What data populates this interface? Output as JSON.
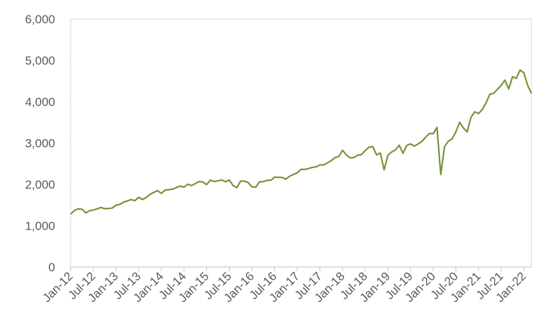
{
  "chart_data": {
    "type": "line",
    "x": [
      "2012-01",
      "2012-02",
      "2012-03",
      "2012-04",
      "2012-05",
      "2012-06",
      "2012-07",
      "2012-08",
      "2012-09",
      "2012-10",
      "2012-11",
      "2012-12",
      "2013-01",
      "2013-02",
      "2013-03",
      "2013-04",
      "2013-05",
      "2013-06",
      "2013-07",
      "2013-08",
      "2013-09",
      "2013-10",
      "2013-11",
      "2013-12",
      "2014-01",
      "2014-02",
      "2014-03",
      "2014-04",
      "2014-05",
      "2014-06",
      "2014-07",
      "2014-08",
      "2014-09",
      "2014-10",
      "2014-11",
      "2014-12",
      "2015-01",
      "2015-02",
      "2015-03",
      "2015-04",
      "2015-05",
      "2015-06",
      "2015-07",
      "2015-08",
      "2015-09",
      "2015-10",
      "2015-11",
      "2015-12",
      "2016-01",
      "2016-02",
      "2016-03",
      "2016-04",
      "2016-05",
      "2016-06",
      "2016-07",
      "2016-08",
      "2016-09",
      "2016-10",
      "2016-11",
      "2016-12",
      "2017-01",
      "2017-02",
      "2017-03",
      "2017-04",
      "2017-05",
      "2017-06",
      "2017-07",
      "2017-08",
      "2017-09",
      "2017-10",
      "2017-11",
      "2017-12",
      "2018-01",
      "2018-02",
      "2018-03",
      "2018-04",
      "2018-05",
      "2018-06",
      "2018-07",
      "2018-08",
      "2018-09",
      "2018-10",
      "2018-11",
      "2018-12",
      "2019-01",
      "2019-02",
      "2019-03",
      "2019-04",
      "2019-05",
      "2019-06",
      "2019-07",
      "2019-08",
      "2019-09",
      "2019-10",
      "2019-11",
      "2019-12",
      "2020-01",
      "2020-02",
      "2020-03",
      "2020-04",
      "2020-05",
      "2020-06",
      "2020-07",
      "2020-08",
      "2020-09",
      "2020-10",
      "2020-11",
      "2020-12",
      "2021-01",
      "2021-02",
      "2021-03",
      "2021-04",
      "2021-05",
      "2021-06",
      "2021-07",
      "2021-08",
      "2021-09",
      "2021-10",
      "2021-11",
      "2021-12",
      "2022-01",
      "2022-02",
      "2022-03"
    ],
    "series": [
      {
        "color": "#77933c",
        "values": [
          1280,
          1366,
          1408,
          1398,
          1310,
          1362,
          1379,
          1406,
          1441,
          1412,
          1416,
          1426,
          1498,
          1515,
          1569,
          1598,
          1631,
          1606,
          1686,
          1633,
          1682,
          1757,
          1806,
          1848,
          1783,
          1859,
          1872,
          1884,
          1924,
          1960,
          1931,
          2003,
          1972,
          2018,
          2068,
          2059,
          1995,
          2105,
          2068,
          2086,
          2107,
          2063,
          2104,
          1972,
          1920,
          2079,
          2080,
          2044,
          1940,
          1932,
          2060,
          2065,
          2097,
          2099,
          2174,
          2171,
          2168,
          2126,
          2199,
          2239,
          2279,
          2364,
          2363,
          2384,
          2412,
          2423,
          2470,
          2472,
          2519,
          2575,
          2648,
          2674,
          2824,
          2714,
          2641,
          2648,
          2705,
          2718,
          2816,
          2902,
          2914,
          2712,
          2760,
          2351,
          2704,
          2784,
          2834,
          2946,
          2752,
          2942,
          2980,
          2926,
          2977,
          3038,
          3141,
          3231,
          3226,
          3380,
          2237,
          2912,
          3044,
          3100,
          3271,
          3500,
          3363,
          3270,
          3622,
          3756,
          3714,
          3811,
          3973,
          4181,
          4204,
          4298,
          4395,
          4523,
          4308,
          4605,
          4567,
          4766,
          4700,
          4400,
          4200
        ]
      }
    ],
    "xlim": [
      "2012-01",
      "2022-03"
    ],
    "xticks": [
      {
        "value": "2012-01",
        "label": "Jan-12"
      },
      {
        "value": "2012-07",
        "label": "Jul-12"
      },
      {
        "value": "2013-01",
        "label": "Jan-13"
      },
      {
        "value": "2013-07",
        "label": "Jul-13"
      },
      {
        "value": "2014-01",
        "label": "Jan-14"
      },
      {
        "value": "2014-07",
        "label": "Jul-14"
      },
      {
        "value": "2015-01",
        "label": "Jan-15"
      },
      {
        "value": "2015-07",
        "label": "Jul-15"
      },
      {
        "value": "2016-01",
        "label": "Jan-16"
      },
      {
        "value": "2016-07",
        "label": "Jul-16"
      },
      {
        "value": "2017-01",
        "label": "Jan-17"
      },
      {
        "value": "2017-07",
        "label": "Jul-17"
      },
      {
        "value": "2018-01",
        "label": "Jan-18"
      },
      {
        "value": "2018-07",
        "label": "Jul-18"
      },
      {
        "value": "2019-01",
        "label": "Jan-19"
      },
      {
        "value": "2019-07",
        "label": "Jul-19"
      },
      {
        "value": "2020-01",
        "label": "Jan-20"
      },
      {
        "value": "2020-07",
        "label": "Jul-20"
      },
      {
        "value": "2021-01",
        "label": "Jan-21"
      },
      {
        "value": "2021-07",
        "label": "Jul-21"
      },
      {
        "value": "2022-01",
        "label": "Jan-22"
      }
    ],
    "ylim": [
      0,
      6000
    ],
    "yticks": [
      0,
      {
        "value": 1000,
        "label": "1,000"
      },
      {
        "value": 2000,
        "label": "2,000"
      },
      {
        "value": 3000,
        "label": "3,000"
      },
      {
        "value": 4000,
        "label": "4,000"
      },
      {
        "value": 5000,
        "label": "5,000"
      },
      {
        "value": 6000,
        "label": "6,000"
      }
    ]
  }
}
